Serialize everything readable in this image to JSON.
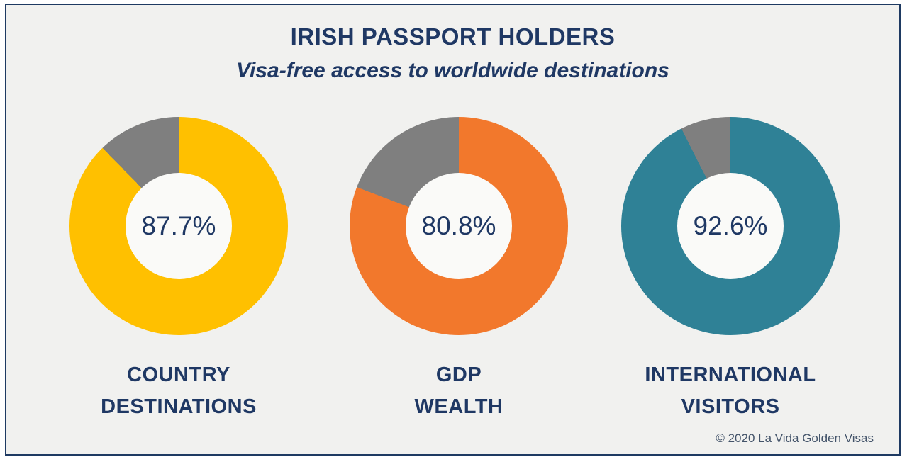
{
  "header": {
    "title": "IRISH PASSPORT HOLDERS",
    "subtitle": "Visa-free access to worldwide destinations"
  },
  "chart_data": {
    "type": "pie",
    "subtype": "donut",
    "title": "IRISH PASSPORT HOLDERS",
    "subtitle": "Visa-free access to worldwide destinations",
    "unit": "%",
    "start_angle": "top",
    "direction": "clockwise",
    "remainder_color": "#7F7F7F",
    "series": [
      {
        "name": "COUNTRY DESTINATIONS",
        "label_lines": [
          "COUNTRY",
          "DESTINATIONS"
        ],
        "value": 87.7,
        "remainder": 12.3,
        "value_label": "87.7%",
        "color": "#FFC000"
      },
      {
        "name": "GDP WEALTH",
        "label_lines": [
          "GDP",
          "WEALTH"
        ],
        "value": 80.8,
        "remainder": 19.2,
        "value_label": "80.8%",
        "color": "#F2782C"
      },
      {
        "name": "INTERNATIONAL VISITORS",
        "label_lines": [
          "INTERNATIONAL",
          "VISITORS"
        ],
        "value": 92.6,
        "remainder": 7.4,
        "value_label": "92.6%",
        "color": "#2F8196"
      }
    ]
  },
  "footer": {
    "copyright": "© 2020 La Vida Golden Visas"
  },
  "colors": {
    "background": "#F1F1EF",
    "frame_border": "#1E3A62",
    "text": "#1F3864",
    "hole": "#FAFAF8",
    "copyright": "#44546A"
  }
}
